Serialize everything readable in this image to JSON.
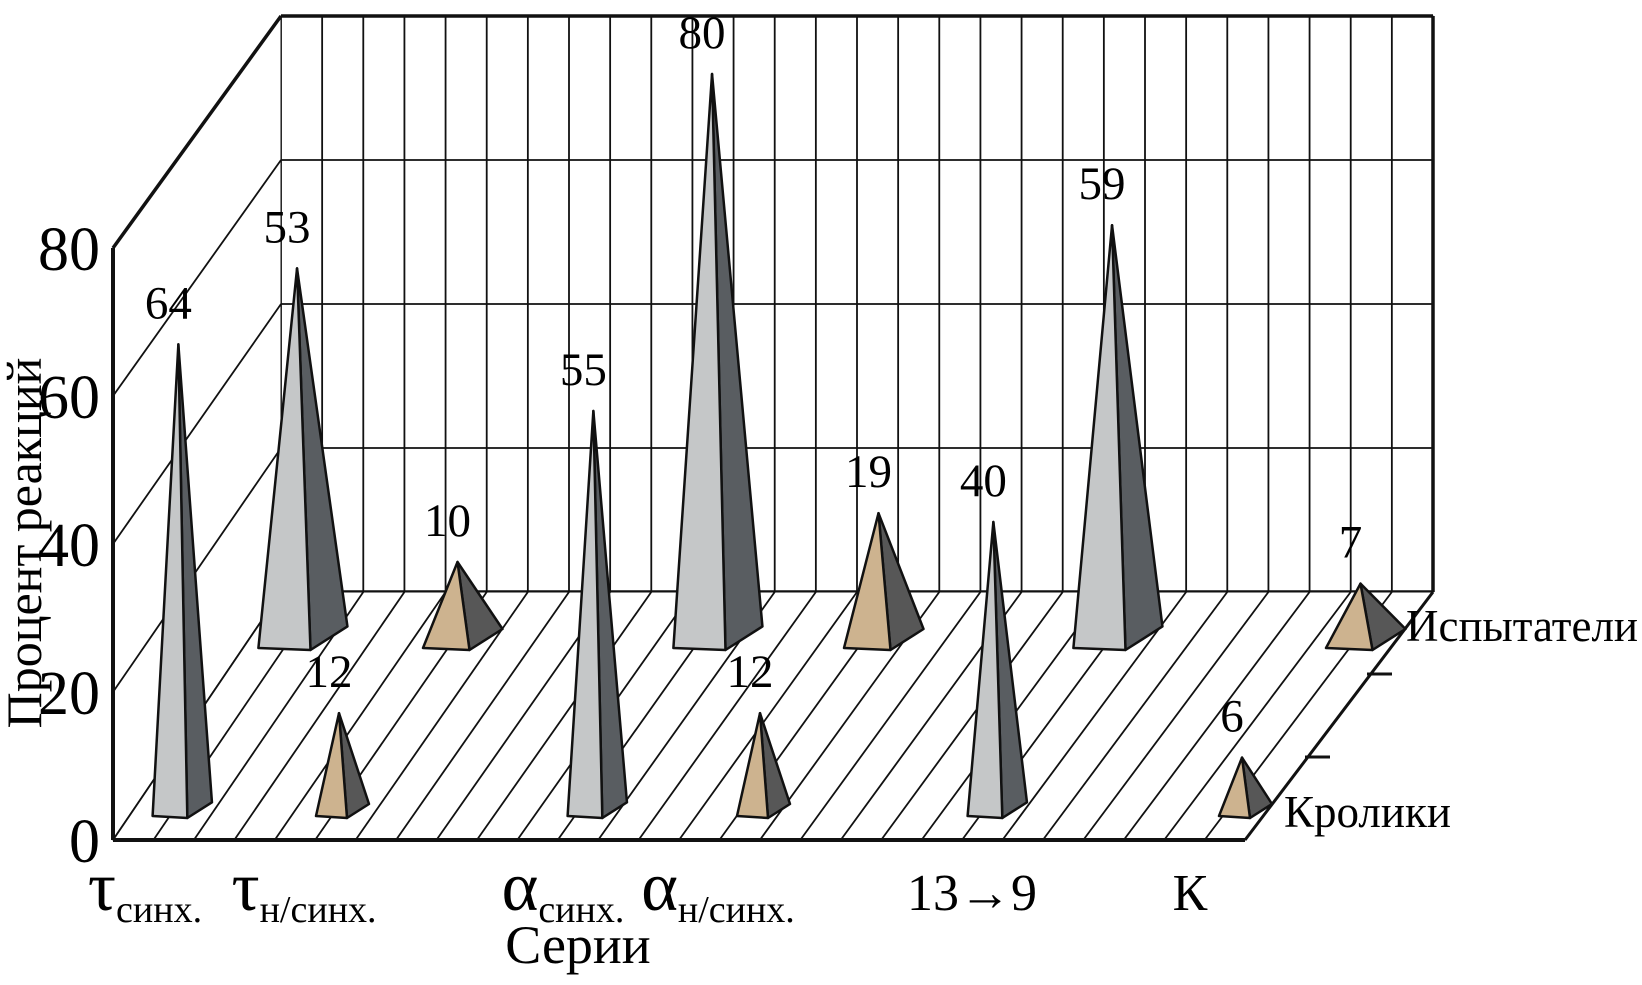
{
  "chart_data": {
    "type": "bar",
    "subtype": "3d-pyramid",
    "title": "",
    "ylabel": "Процент реакций",
    "xlabel": "Серии",
    "ylim": [
      0,
      80
    ],
    "yticks": [
      0,
      20,
      40,
      60,
      80
    ],
    "grid": true,
    "legend_position": "depth-axis-right",
    "categories": [
      {
        "main": "τ",
        "sub": "синх."
      },
      {
        "main": "τ",
        "sub": "н/синх."
      },
      {
        "main": "α",
        "sub": "синх."
      },
      {
        "main": "α",
        "sub": "н/синх."
      },
      {
        "main": "13→9",
        "sub": ""
      },
      {
        "main": "К",
        "sub": ""
      }
    ],
    "series": [
      {
        "name": "Испытатели",
        "row": "back",
        "values": [
          53,
          10,
          80,
          19,
          59,
          7
        ]
      },
      {
        "name": "Кролики",
        "row": "front",
        "values": [
          64,
          12,
          55,
          12,
          40,
          6
        ]
      }
    ],
    "colors": {
      "palettes": {
        "gray": {
          "light": "#c5c7c8",
          "dark": "#595d61"
        },
        "tan": {
          "light": "#cdb38f",
          "dark": "#575757"
        }
      },
      "category_palette": [
        "gray",
        "tan",
        "gray",
        "tan",
        "gray",
        "tan"
      ],
      "line": "#111111",
      "background": "#ffffff"
    }
  }
}
